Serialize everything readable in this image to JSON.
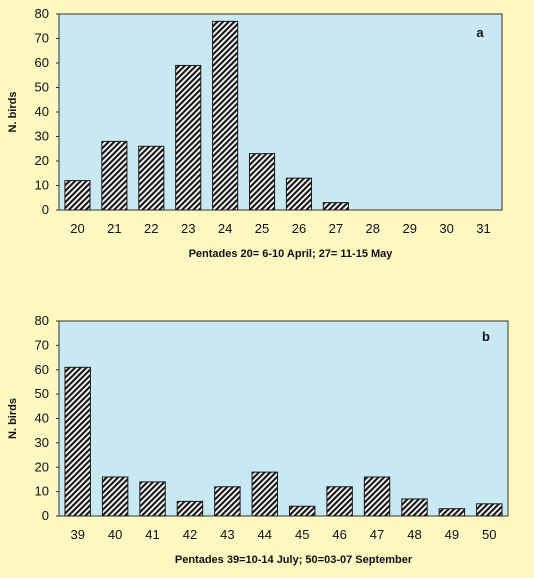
{
  "chart_data": [
    {
      "type": "bar",
      "panel_label": "a",
      "categories": [
        "20",
        "21",
        "22",
        "23",
        "24",
        "25",
        "26",
        "27",
        "28",
        "29",
        "30",
        "31"
      ],
      "values": [
        12,
        28,
        26,
        59,
        77,
        23,
        13,
        3,
        0,
        0,
        0,
        0
      ],
      "xlabel": "Pentades 20= 6-10 April; 27= 11-15 May",
      "ylabel": "N. birds",
      "ylim": [
        0,
        80
      ],
      "yticks": [
        "0",
        "10",
        "20",
        "30",
        "40",
        "50",
        "60",
        "70",
        "80"
      ],
      "grid": false,
      "colors": {
        "plot_bg": "#c8e9f2",
        "bar_hatch": "#1a1a1a",
        "page_bg": "#fdf7c2"
      }
    },
    {
      "type": "bar",
      "panel_label": "b",
      "categories": [
        "39",
        "40",
        "41",
        "42",
        "43",
        "44",
        "45",
        "46",
        "47",
        "48",
        "49",
        "50"
      ],
      "values": [
        61,
        16,
        14,
        6,
        12,
        18,
        4,
        12,
        16,
        7,
        3,
        5
      ],
      "xlabel": "Pentades 39=10-14 July; 50=03-07 September",
      "ylabel": "N. birds",
      "ylim": [
        0,
        80
      ],
      "yticks": [
        "0",
        "10",
        "20",
        "30",
        "40",
        "50",
        "60",
        "70",
        "80"
      ],
      "grid": false,
      "colors": {
        "plot_bg": "#c8e9f2",
        "bar_hatch": "#1a1a1a",
        "page_bg": "#fdf7c2"
      }
    }
  ]
}
